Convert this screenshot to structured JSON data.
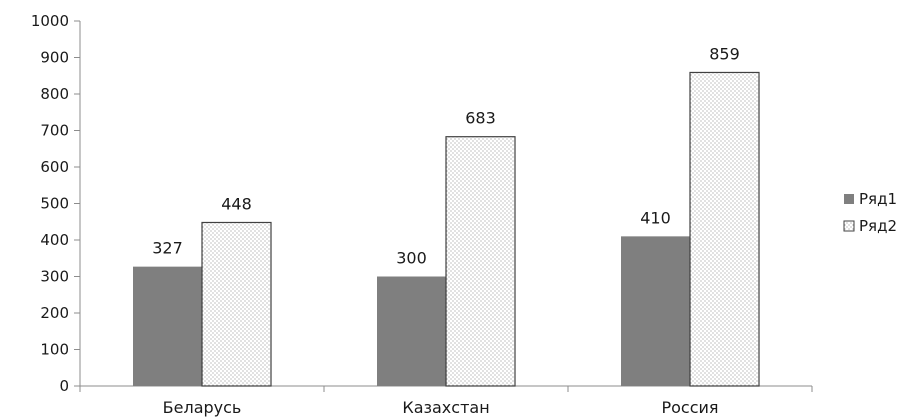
{
  "chart_data": {
    "type": "bar",
    "categories": [
      "Беларусь",
      "Казахстан",
      "Россия"
    ],
    "series": [
      {
        "name": "Ряд1",
        "values": [
          327,
          300,
          410
        ],
        "color": "#7f7f7f",
        "pattern": "solid"
      },
      {
        "name": "Ряд2",
        "values": [
          448,
          683,
          859
        ],
        "color": "#ffffff",
        "pattern": "dotted"
      }
    ],
    "ylim": [
      0,
      1000
    ],
    "yticks": [
      0,
      100,
      200,
      300,
      400,
      500,
      600,
      700,
      800,
      900,
      1000
    ],
    "grid": false,
    "legend": "right",
    "data_labels": true
  }
}
